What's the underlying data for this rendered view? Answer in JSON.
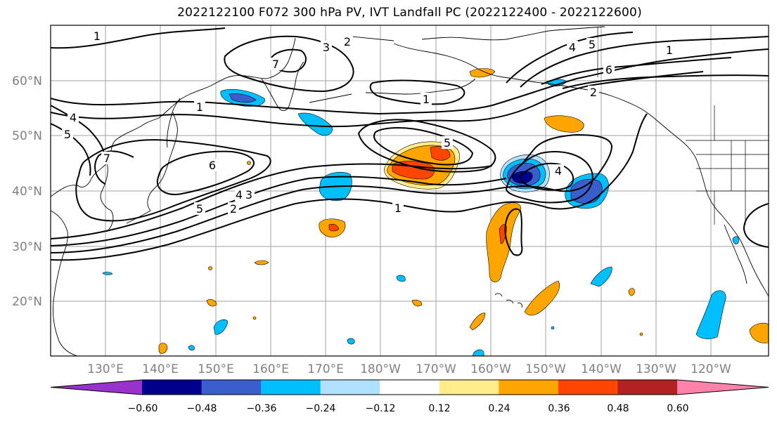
{
  "title": "2022122100 F072 300 hPa PV, IVT Landfall PC (2022122400 - 2022122600)",
  "lat_labels": [
    "60°N",
    "50°N",
    "40°N",
    "30°N",
    "20°N"
  ],
  "lon_labels": [
    "130°E",
    "140°E",
    "150°E",
    "160°E",
    "170°E",
    "180°W",
    "170°W",
    "160°W",
    "150°W",
    "140°W",
    "130°W",
    "120°W"
  ],
  "contour_labels": [
    "1",
    "2",
    "3",
    "4",
    "5",
    "6",
    "7"
  ],
  "colorbar": {
    "ticks": [
      "−0.60",
      "−0.48",
      "−0.36",
      "−0.24",
      "−0.12",
      "0.12",
      "0.24",
      "0.36",
      "0.48",
      "0.60"
    ],
    "colors": [
      "#9932cc",
      "#00008b",
      "#3a5fcd",
      "#00bfff",
      "#b0e2ff",
      "#ffffff",
      "#ffec8b",
      "#ffa500",
      "#ff4500",
      "#b22222",
      "#ff82ab"
    ]
  },
  "colors": {
    "axis_label": "#808080",
    "grid": "#a0a0a0",
    "coast": "#000000",
    "contour": "#000000"
  }
}
